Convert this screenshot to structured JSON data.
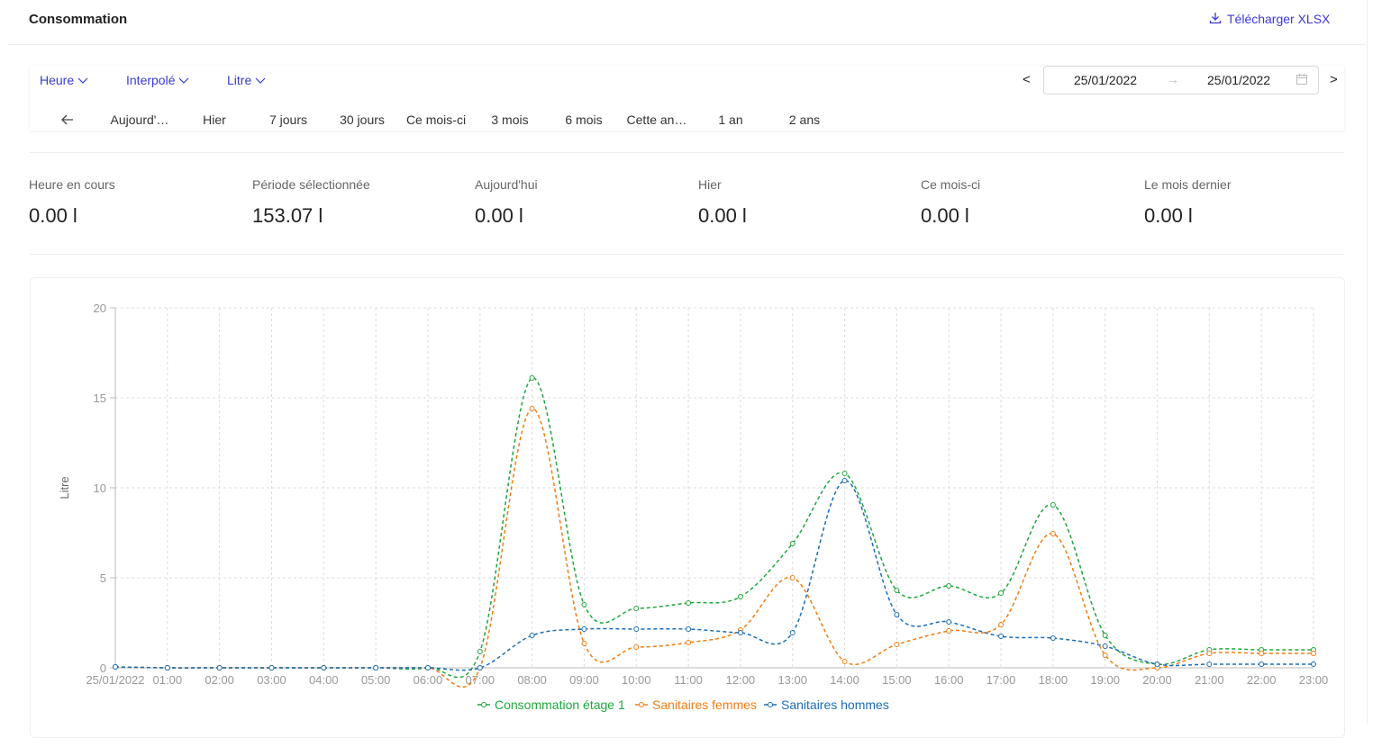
{
  "header": {
    "title": "Consommation",
    "download": "Télécharger XLSX"
  },
  "filters": [
    "Heure",
    "Interpolé",
    "Litre"
  ],
  "date_range": {
    "prev": "<",
    "start": "25/01/2022",
    "end": "25/01/2022",
    "next": ">"
  },
  "quick_ranges": [
    "Aujourd'…",
    "Hier",
    "7 jours",
    "30 jours",
    "Ce mois-ci",
    "3 mois",
    "6 mois",
    "Cette an…",
    "1 an",
    "2 ans"
  ],
  "stats": [
    {
      "label": "Heure en cours",
      "value": "0.00 l"
    },
    {
      "label": "Période sélectionnée",
      "value": "153.07 l"
    },
    {
      "label": "Aujourd'hui",
      "value": "0.00 l"
    },
    {
      "label": "Hier",
      "value": "0.00 l"
    },
    {
      "label": "Ce mois-ci",
      "value": "0.00 l"
    },
    {
      "label": "Le mois dernier",
      "value": "0.00 l"
    }
  ],
  "chart_data": {
    "type": "line",
    "y_label": "Litre",
    "categories": [
      "25/01/2022",
      "01:00",
      "02:00",
      "03:00",
      "04:00",
      "05:00",
      "06:00",
      "07:00",
      "08:00",
      "09:00",
      "10:00",
      "11:00",
      "12:00",
      "13:00",
      "14:00",
      "15:00",
      "16:00",
      "17:00",
      "18:00",
      "19:00",
      "20:00",
      "21:00",
      "22:00",
      "23:00"
    ],
    "ylim": [
      0,
      20
    ],
    "yticks": [
      0,
      5,
      10,
      15,
      20
    ],
    "grid": true,
    "series": [
      {
        "name": "Consommation étage 1",
        "color": "#1ea73c",
        "values": [
          0.05,
          0,
          0,
          0,
          0,
          0,
          0,
          0.9,
          16.1,
          3.5,
          3.3,
          3.6,
          3.95,
          6.9,
          10.8,
          4.3,
          4.55,
          4.15,
          9.05,
          1.8,
          0.2,
          1.0,
          1.0,
          1.0
        ]
      },
      {
        "name": "Sanitaires femmes",
        "color": "#f27d12",
        "values": [
          0.05,
          0,
          0,
          0,
          0,
          0,
          0,
          0,
          14.4,
          1.35,
          1.15,
          1.4,
          2.1,
          5.0,
          0.35,
          1.3,
          2.05,
          2.4,
          7.45,
          0.7,
          0,
          0.8,
          0.8,
          0.8
        ]
      },
      {
        "name": "Sanitaires hommes",
        "color": "#1b6db4",
        "values": [
          0.05,
          0,
          0,
          0,
          0,
          0,
          0,
          0,
          1.8,
          2.15,
          2.15,
          2.15,
          1.95,
          1.95,
          10.4,
          2.95,
          2.55,
          1.75,
          1.65,
          1.2,
          0.2,
          0.2,
          0.2,
          0.2
        ]
      }
    ]
  }
}
